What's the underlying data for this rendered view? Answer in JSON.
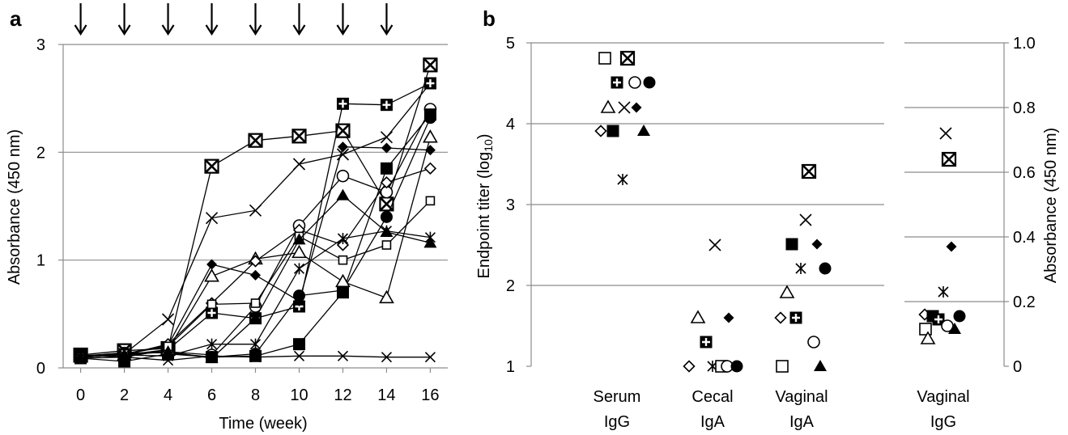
{
  "panel_a": {
    "label": "a"
  },
  "panel_b": {
    "label": "b"
  },
  "chart_data": [
    {
      "type": "line",
      "panel": "a",
      "xlabel": "Time (week)",
      "ylabel": "Absorbance (450 nm)",
      "xlim": [
        -0.8,
        16.8
      ],
      "ylim": [
        0,
        3
      ],
      "x_ticks": [
        "0",
        "2",
        "4",
        "6",
        "8",
        "10",
        "12",
        "14",
        "16"
      ],
      "y_ticks": [
        "0",
        "1",
        "2",
        "3"
      ],
      "grid": "horizontal",
      "arrow_weeks": [
        0,
        2,
        4,
        6,
        8,
        10,
        12,
        14
      ],
      "x": [
        0,
        2,
        4,
        6,
        8,
        10,
        12,
        14,
        16
      ],
      "series": [
        {
          "marker": "boxx",
          "values": [
            0.12,
            0.16,
            0.18,
            1.87,
            2.11,
            2.15,
            2.2,
            1.52,
            2.81
          ]
        },
        {
          "marker": "x",
          "values": [
            0.1,
            0.13,
            0.45,
            1.39,
            1.46,
            1.89,
            1.98,
            2.14,
            2.64
          ]
        },
        {
          "marker": "boxplus",
          "values": [
            0.12,
            0.1,
            0.17,
            0.51,
            0.46,
            0.57,
            2.45,
            2.44,
            2.64
          ]
        },
        {
          "marker": "circle",
          "values": [
            0.11,
            0.13,
            0.15,
            0.12,
            0.57,
            1.32,
            1.78,
            1.63,
            2.4
          ]
        },
        {
          "marker": "filled-circle",
          "values": [
            0.11,
            0.14,
            0.14,
            0.1,
            0.13,
            0.67,
            0.72,
            1.4,
            2.32
          ]
        },
        {
          "marker": "filled-square",
          "values": [
            0.09,
            0.06,
            0.13,
            0.1,
            0.11,
            0.22,
            0.7,
            1.85,
            2.35
          ]
        },
        {
          "marker": "filled-diamond",
          "values": [
            0.1,
            0.13,
            0.21,
            0.96,
            0.86,
            0.62,
            2.05,
            2.04,
            2.02
          ]
        },
        {
          "marker": "triangle",
          "values": [
            0.1,
            0.12,
            0.17,
            0.85,
            1.01,
            1.07,
            0.8,
            0.65,
            2.14
          ]
        },
        {
          "marker": "diamond",
          "values": [
            0.1,
            0.12,
            0.22,
            0.6,
            0.99,
            1.28,
            1.14,
            1.72,
            1.85
          ]
        },
        {
          "marker": "small-square",
          "values": [
            0.1,
            0.13,
            0.2,
            0.59,
            0.6,
            1.22,
            1.0,
            1.14,
            1.55
          ]
        },
        {
          "marker": "filled-triangle",
          "values": [
            0.1,
            0.12,
            0.15,
            0.09,
            0.46,
            1.19,
            1.6,
            1.26,
            1.16
          ]
        },
        {
          "marker": "asterisk",
          "values": [
            0.1,
            0.12,
            0.11,
            0.22,
            0.22,
            0.92,
            1.2,
            1.27,
            1.21
          ]
        },
        {
          "marker": "small-x",
          "values": [
            0.09,
            0.1,
            0.07,
            0.11,
            0.1,
            0.11,
            0.11,
            0.1,
            0.1
          ]
        }
      ]
    },
    {
      "type": "scatter",
      "panel": "b-left",
      "ylabel": "Endpoint titer (log10)",
      "ylabel_main": "Endpoint titer (log",
      "ylabel_sub": "10",
      "ylabel_end": ")",
      "ylim": [
        1,
        5
      ],
      "y_ticks": [
        "1",
        "2",
        "3",
        "4",
        "5"
      ],
      "grid": "horizontal",
      "categories": [
        {
          "line1": "Serum",
          "line2": "IgG"
        },
        {
          "line1": "Cecal",
          "line2": "IgA"
        },
        {
          "line1": "Vaginal",
          "line2": "IgA"
        }
      ],
      "points": [
        {
          "category": 0,
          "marker": "square",
          "offset": -15,
          "value": 4.81
        },
        {
          "category": 0,
          "marker": "boxx",
          "offset": 13,
          "value": 4.81
        },
        {
          "category": 0,
          "marker": "boxplus",
          "offset": 0,
          "value": 4.51
        },
        {
          "category": 0,
          "marker": "circle",
          "offset": 22,
          "value": 4.51
        },
        {
          "category": 0,
          "marker": "filled-circle",
          "offset": 40,
          "value": 4.51
        },
        {
          "category": 0,
          "marker": "triangle",
          "offset": -11,
          "value": 4.2
        },
        {
          "category": 0,
          "marker": "x",
          "offset": 9,
          "value": 4.2
        },
        {
          "category": 0,
          "marker": "filled-diamond",
          "offset": 24,
          "value": 4.2
        },
        {
          "category": 0,
          "marker": "diamond",
          "offset": -20,
          "value": 3.91
        },
        {
          "category": 0,
          "marker": "filled-square",
          "offset": -5,
          "value": 3.91
        },
        {
          "category": 0,
          "marker": "filled-triangle",
          "offset": 33,
          "value": 3.91
        },
        {
          "category": 0,
          "marker": "asterisk",
          "offset": 7,
          "value": 3.31
        },
        {
          "category": 1,
          "marker": "x",
          "offset": 3,
          "value": 2.5
        },
        {
          "category": 1,
          "marker": "triangle",
          "offset": -18,
          "value": 1.6
        },
        {
          "category": 1,
          "marker": "filled-diamond",
          "offset": 20,
          "value": 1.6
        },
        {
          "category": 1,
          "marker": "boxplus",
          "offset": -8,
          "value": 1.3
        },
        {
          "category": 1,
          "marker": "diamond",
          "offset": -29,
          "value": 1.0
        },
        {
          "category": 1,
          "marker": "asterisk",
          "offset": 0,
          "value": 1.0
        },
        {
          "category": 1,
          "marker": "square",
          "offset": 11,
          "value": 1.0
        },
        {
          "category": 1,
          "marker": "circle",
          "offset": 18,
          "value": 1.0
        },
        {
          "category": 1,
          "marker": "filled-circle",
          "offset": 30,
          "value": 1.0
        },
        {
          "category": 2,
          "marker": "boxx",
          "offset": 9,
          "value": 3.41
        },
        {
          "category": 2,
          "marker": "x",
          "offset": 5,
          "value": 2.81
        },
        {
          "category": 2,
          "marker": "filled-square",
          "offset": -12,
          "value": 2.51
        },
        {
          "category": 2,
          "marker": "filled-diamond",
          "offset": 19,
          "value": 2.51
        },
        {
          "category": 2,
          "marker": "asterisk",
          "offset": -1,
          "value": 2.21
        },
        {
          "category": 2,
          "marker": "filled-circle",
          "offset": 29,
          "value": 2.21
        },
        {
          "category": 2,
          "marker": "triangle",
          "offset": -18,
          "value": 1.91
        },
        {
          "category": 2,
          "marker": "diamond",
          "offset": -26,
          "value": 1.6
        },
        {
          "category": 2,
          "marker": "boxplus",
          "offset": -7,
          "value": 1.6
        },
        {
          "category": 2,
          "marker": "circle",
          "offset": 15,
          "value": 1.3
        },
        {
          "category": 2,
          "marker": "square",
          "offset": -24,
          "value": 1.0
        },
        {
          "category": 2,
          "marker": "filled-triangle",
          "offset": 23,
          "value": 1.0
        }
      ]
    },
    {
      "type": "scatter",
      "panel": "b-right",
      "ylabel": "Absorbance (450 nm)",
      "ylim": [
        0,
        1
      ],
      "y_ticks": [
        "0",
        "0.2",
        "0.4",
        "0.6",
        "0.8",
        "1.0"
      ],
      "grid": "horizontal",
      "categories": [
        {
          "line1": "Vaginal",
          "line2": "IgG"
        }
      ],
      "points": [
        {
          "category": 0,
          "marker": "x",
          "offset": 3,
          "value": 0.72
        },
        {
          "category": 0,
          "marker": "boxx",
          "offset": 7,
          "value": 0.64
        },
        {
          "category": 0,
          "marker": "filled-diamond",
          "offset": 10,
          "value": 0.37
        },
        {
          "category": 0,
          "marker": "asterisk",
          "offset": 0,
          "value": 0.23
        },
        {
          "category": 0,
          "marker": "diamond",
          "offset": -23,
          "value": 0.16
        },
        {
          "category": 0,
          "marker": "filled-square",
          "offset": -13,
          "value": 0.155
        },
        {
          "category": 0,
          "marker": "boxplus",
          "offset": -6,
          "value": 0.145
        },
        {
          "category": 0,
          "marker": "filled-circle",
          "offset": 20,
          "value": 0.155
        },
        {
          "category": 0,
          "marker": "circle",
          "offset": 5,
          "value": 0.125
        },
        {
          "category": 0,
          "marker": "square",
          "offset": -22,
          "value": 0.115
        },
        {
          "category": 0,
          "marker": "filled-triangle",
          "offset": 14,
          "value": 0.115
        },
        {
          "category": 0,
          "marker": "triangle",
          "offset": -19,
          "value": 0.085
        }
      ]
    }
  ]
}
